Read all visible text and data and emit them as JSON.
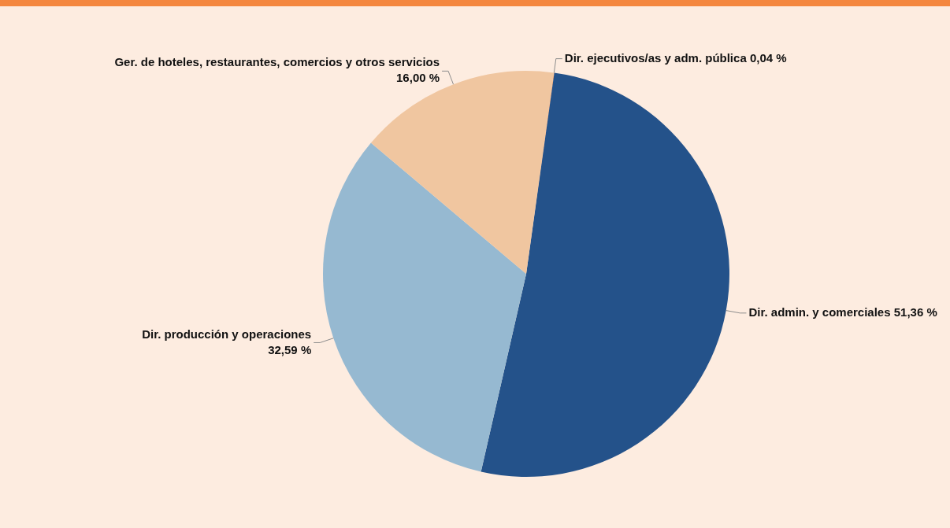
{
  "chart_data": {
    "type": "pie",
    "categories": [
      "Dir. ejecutivos/as y adm. pública",
      "Dir. admin. y comerciales",
      "Dir. producción y operaciones",
      "Ger. de hoteles, restaurantes, comercios y otros servicios"
    ],
    "values": [
      0.04,
      51.36,
      32.59,
      16.0
    ],
    "value_labels": [
      "0,04 %",
      "51,36 %",
      "32,59 %",
      "16,00 %"
    ],
    "colors": [
      "#f4873f",
      "#24528a",
      "#96b9d1",
      "#f0c6a0"
    ],
    "legend": false
  }
}
